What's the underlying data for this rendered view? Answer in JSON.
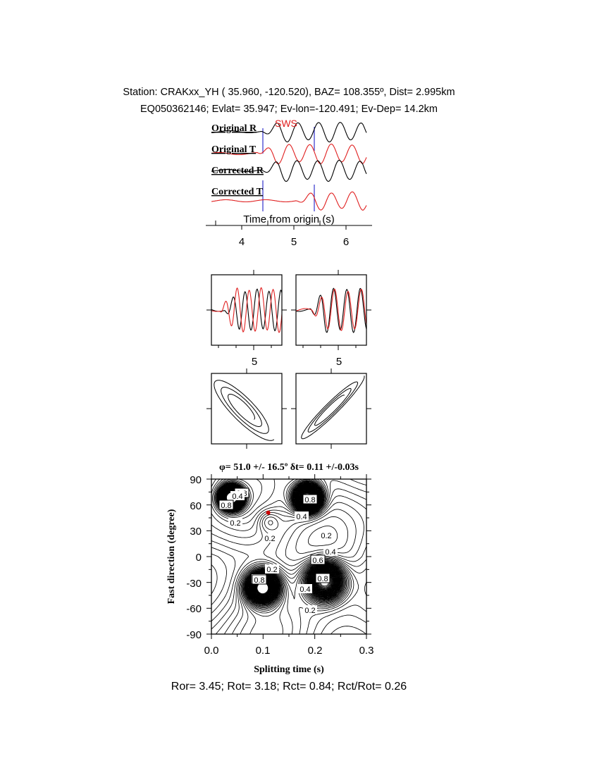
{
  "header": {
    "line1": "Station: CRAKxx_YH ( 35.960, -120.520), BAZ=  108.355º, Dist=    2.995km",
    "line2": "EQ050362146; Evlat=  35.947; Ev-lon=-120.491; Ev-Dep= 14.2km"
  },
  "traces": {
    "labels": [
      "Original R",
      "Original T",
      "Corrected R",
      "Corrected T"
    ],
    "sws_label": "SWS",
    "xlabel": "Time from origin (s)",
    "ticks": [
      "4",
      "5",
      "6"
    ]
  },
  "waveform_panels": {
    "tick_labels": [
      "5",
      "5"
    ]
  },
  "grid_search": {
    "title": "φ= 51.0 +/- 16.5º δt= 0.11 +/-0.03s",
    "xlabel": "Splitting time (s)",
    "ylabel": "Fast direction (degree)",
    "xticks": [
      "0.0",
      "0.1",
      "0.2",
      "0.3"
    ],
    "yticks": [
      "90",
      "60",
      "30",
      "0",
      "-30",
      "-60",
      "-90"
    ],
    "contour_labels": [
      "0.8",
      "0.4",
      "0.8",
      "0.2",
      "0.8",
      "0.4",
      "0.2",
      "0.2",
      "0.2",
      "0.4",
      "0.8",
      "0.4",
      "0.6",
      "0.8",
      "0.4",
      "0.2"
    ]
  },
  "footer": {
    "ratios": "Ror= 3.45; Rot= 3.18; Rct= 0.84; Rct/Rot= 0.26"
  },
  "chart_data": {
    "type": "contour",
    "title": "φ= 51.0 +/- 16.5º δt= 0.11 +/-0.03s",
    "xlabel": "Splitting time (s)",
    "ylabel": "Fast direction (degree)",
    "xlim": [
      0.0,
      0.3
    ],
    "ylim": [
      -90,
      90
    ],
    "best_fit": {
      "dt": 0.11,
      "phi": 51.0
    },
    "colors": {
      "radial": "#000000",
      "transverse": "#e02020",
      "marker": "#cc0000",
      "pick": "#3333cc"
    }
  }
}
